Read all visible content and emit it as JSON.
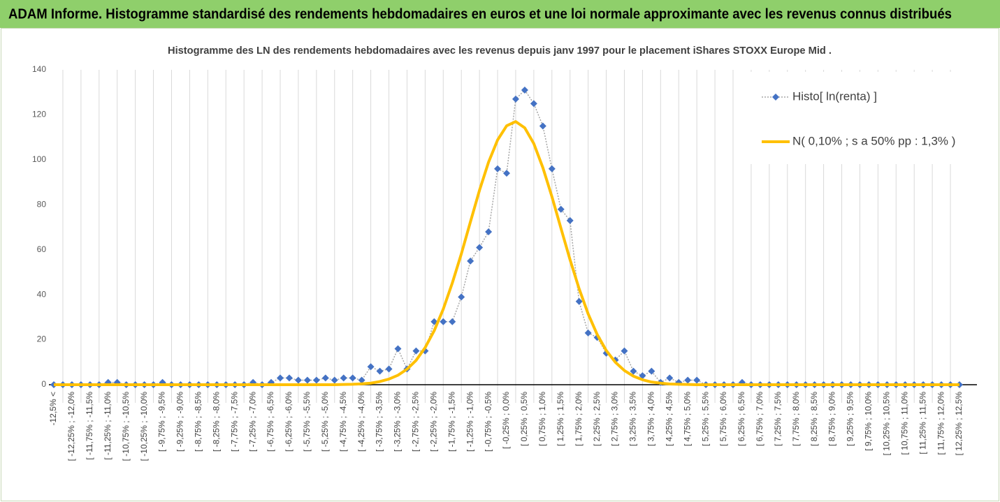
{
  "chart_data": {
    "type": "line",
    "title": "ADAM Informe. Histogramme standardisé des rendements hebdomadaires en euros et une loi normale approximante avec les revenus connus distribués",
    "subtitle": "Histogramme des LN des rendements hebdomadaires avec les revenus depuis janv 1997 pour le placement iShares STOXX Europe Mid .",
    "categories": [
      "-12,5% <",
      null,
      "[ -12,25% ; -12,0%",
      null,
      "[ -11,75% ; -11,5%",
      null,
      "[ -11,25% ; -11,0%",
      null,
      "[ -10,75% ; -10,5%",
      null,
      "[ -10,25% ; -10,0%",
      null,
      "[ -9,75% ; -9,5%",
      null,
      "[ -9,25% ; -9,0%",
      null,
      "[ -8,75% ; -8,5%",
      null,
      "[ -8,25% ; -8,0%",
      null,
      "[ -7,75% ; -7,5%",
      null,
      "[ -7,25% ; -7,0%",
      null,
      "[ -6,75% ; -6,5%",
      null,
      "[ -6,25% ; -6,0%",
      null,
      "[ -5,75% ; -5,5%",
      null,
      "[ -5,25% ; -5,0%",
      null,
      "[ -4,75% ; -4,5%",
      null,
      "[ -4,25% ; -4,0%",
      null,
      "[ -3,75% ; -3,5%",
      null,
      "[ -3,25% ; -3,0%",
      null,
      "[ -2,75% ; -2,5%",
      null,
      "[ -2,25% ; -2,0%",
      null,
      "[ -1,75% ; -1,5%",
      null,
      "[ -1,25% ; -1,0%",
      null,
      "[ -0,75% ; -0,5%",
      null,
      "[ -0,25% ; 0,0%",
      null,
      "[ 0,25% ; 0,5%",
      null,
      "[ 0,75% ; 1,0%",
      null,
      "[ 1,25% ; 1,5%",
      null,
      "[ 1,75% ; 2,0%",
      null,
      "[ 2,25% ; 2,5%",
      null,
      "[ 2,75% ; 3,0%",
      null,
      "[ 3,25% ; 3,5%",
      null,
      "[ 3,75% ; 4,0%",
      null,
      "[ 4,25% ; 4,5%",
      null,
      "[ 4,75% ; 5,0%",
      null,
      "[ 5,25% ; 5,5%",
      null,
      "[ 5,75% ; 6,0%",
      null,
      "[ 6,25% ; 6,5%",
      null,
      "[ 6,75% ; 7,0%",
      null,
      "[ 7,25% ; 7,5%",
      null,
      "[ 7,75% ; 8,0%",
      null,
      "[ 8,25% ; 8,5%",
      null,
      "[ 8,75% ; 9,0%",
      null,
      "[ 9,25% ; 9,5%",
      null,
      "[ 9,75% ; 10,0%",
      null,
      "[ 10,25% ; 10,5%",
      null,
      "[ 10,75% ; 11,0%",
      null,
      "[ 11,25% ; 11,5%",
      null,
      "[ 11,75% ; 12,0%",
      null,
      "[ 12,25% ; 12,5%"
    ],
    "series": [
      {
        "name": "Histo[ ln(renta) ]",
        "color": "#4472c4",
        "line_color": "#a5a5a5",
        "marker": "diamond",
        "dash": "dotted",
        "values": [
          0,
          0,
          0,
          0,
          0,
          0,
          1,
          1,
          0,
          0,
          0,
          0,
          1,
          0,
          0,
          0,
          0,
          0,
          0,
          0,
          0,
          0,
          1,
          0,
          1,
          3,
          3,
          2,
          2,
          2,
          3,
          2,
          3,
          3,
          2,
          8,
          6,
          7,
          16,
          7,
          15,
          15,
          28,
          28,
          28,
          39,
          55,
          61,
          68,
          96,
          94,
          127,
          131,
          125,
          115,
          96,
          78,
          73,
          37,
          23,
          21,
          14,
          11,
          15,
          6,
          4,
          6,
          1,
          3,
          1,
          2,
          2,
          0,
          0,
          0,
          0,
          1,
          0,
          0,
          0,
          0,
          0,
          0,
          0,
          0,
          0,
          0,
          0,
          0,
          0,
          0,
          0,
          0,
          0,
          0,
          0,
          0,
          0,
          0,
          0,
          0
        ]
      },
      {
        "name": "N( 0,10% ; s a 50% pp : 1,3% )",
        "color": "#ffc000",
        "dash": "solid",
        "values": [
          0,
          0,
          0,
          0,
          0,
          0,
          0,
          0,
          0,
          0,
          0,
          0,
          0,
          0,
          0,
          0,
          0,
          0,
          0,
          0,
          0,
          0,
          0,
          0,
          0,
          0,
          0,
          0,
          0,
          0,
          0,
          0,
          0.1,
          0.2,
          0.4,
          0.7,
          1.4,
          2.5,
          4.2,
          6.9,
          10.8,
          16.5,
          24.0,
          33.6,
          45.2,
          58.2,
          72.4,
          86.4,
          98.9,
          108.8,
          115.1,
          117.0,
          114.2,
          107.2,
          96.5,
          83.6,
          69.5,
          55.6,
          42.7,
          31.5,
          22.3,
          15.2,
          10.0,
          6.3,
          3.8,
          2.2,
          1.2,
          0.7,
          0.3,
          0.2,
          0.1,
          0,
          0,
          0,
          0,
          0,
          0,
          0,
          0,
          0,
          0,
          0,
          0,
          0,
          0,
          0,
          0,
          0,
          0,
          0,
          0,
          0,
          0,
          0,
          0,
          0,
          0,
          0,
          0,
          0,
          0
        ]
      }
    ],
    "ylim": [
      0,
      140
    ],
    "yticks": [
      0,
      20,
      40,
      60,
      80,
      100,
      120,
      140
    ],
    "grid": "x",
    "legend": "top-right"
  }
}
